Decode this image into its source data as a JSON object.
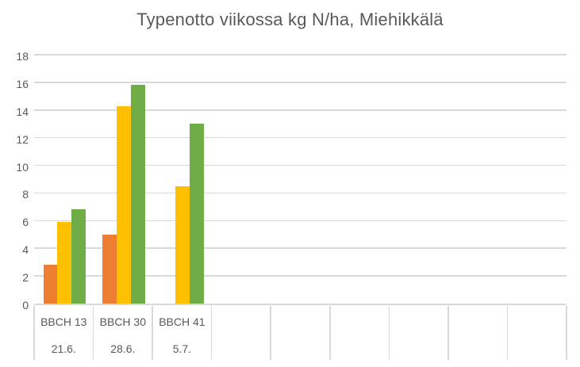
{
  "title": "Typenotto viikossa kg N/ha, Miehikkälä",
  "colors": {
    "orange": "#ED7D31",
    "yellow": "#FFC000",
    "green": "#70AD47",
    "gridline": "#D9D9D9",
    "text": "#595959",
    "background": "#FFFFFF"
  },
  "chart_data": {
    "type": "bar",
    "title": "Typenotto viikossa kg N/ha, Miehikkälä",
    "categories": [
      "BBCH 13",
      "BBCH 30",
      "BBCH 41"
    ],
    "category_dates": [
      "21.6.",
      "28.6.",
      "5.7."
    ],
    "empty_category_slots": 6,
    "series": [
      {
        "name": "orange-series",
        "color": "#ED7D31",
        "values": [
          2.8,
          5.0,
          null
        ]
      },
      {
        "name": "yellow-series",
        "color": "#FFC000",
        "values": [
          5.9,
          14.3,
          8.5
        ]
      },
      {
        "name": "green-series",
        "color": "#70AD47",
        "values": [
          6.8,
          15.8,
          13.0
        ]
      }
    ],
    "xlabel": "",
    "ylabel": "",
    "ylim": [
      0,
      18
    ],
    "yticks": [
      0,
      2,
      4,
      6,
      8,
      10,
      12,
      14,
      16,
      18
    ],
    "grid": "horizontal-only",
    "legend": "none"
  }
}
